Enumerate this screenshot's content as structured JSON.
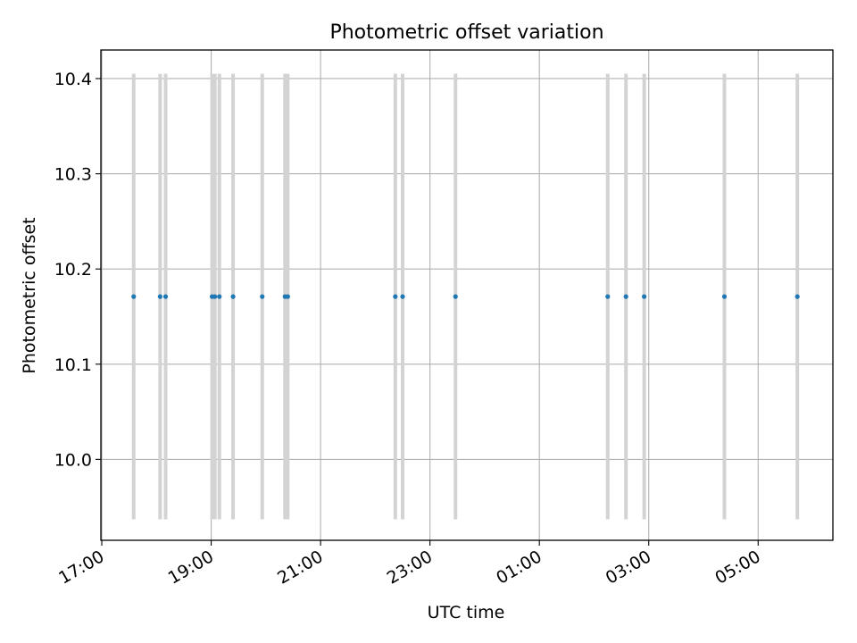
{
  "chart_data": {
    "type": "scatter",
    "title": "Photometric offset variation",
    "xlabel": "UTC time",
    "ylabel": "Photometric offset",
    "x_axis": "time",
    "x_ticks": [
      "17:00",
      "19:00",
      "21:00",
      "23:00",
      "01:00",
      "03:00",
      "05:00"
    ],
    "xlim": [
      "2024-01-01T16:59",
      "2024-01-02T06:22"
    ],
    "y_ticks": [
      "10.0",
      "10.1",
      "10.2",
      "10.3",
      "10.4"
    ],
    "ylim": [
      9.915,
      10.43
    ],
    "grid": true,
    "series": [
      {
        "x": [
          "17:35",
          "18:04",
          "18:10",
          "19:01",
          "19:04",
          "19:09",
          "19:24",
          "19:56",
          "20:21",
          "20:24",
          "22:22",
          "22:30",
          "23:28",
          "02:15",
          "02:35",
          "02:55",
          "04:23",
          "05:43"
        ],
        "y": [
          10.171,
          10.171,
          10.171,
          10.171,
          10.171,
          10.171,
          10.171,
          10.171,
          10.171,
          10.171,
          10.171,
          10.171,
          10.171,
          10.171,
          10.171,
          10.171,
          10.171,
          10.171
        ],
        "err_low": [
          9.937,
          9.937,
          9.937,
          9.937,
          9.937,
          9.937,
          9.937,
          9.937,
          9.937,
          9.937,
          9.937,
          9.937,
          9.937,
          9.937,
          9.937,
          9.937,
          9.937,
          9.937
        ],
        "err_high": [
          10.405,
          10.405,
          10.405,
          10.405,
          10.405,
          10.405,
          10.405,
          10.405,
          10.405,
          10.405,
          10.405,
          10.405,
          10.405,
          10.405,
          10.405,
          10.405,
          10.405,
          10.405
        ],
        "color": "#1f77b4",
        "error_color": "#d3d3d3"
      }
    ]
  }
}
